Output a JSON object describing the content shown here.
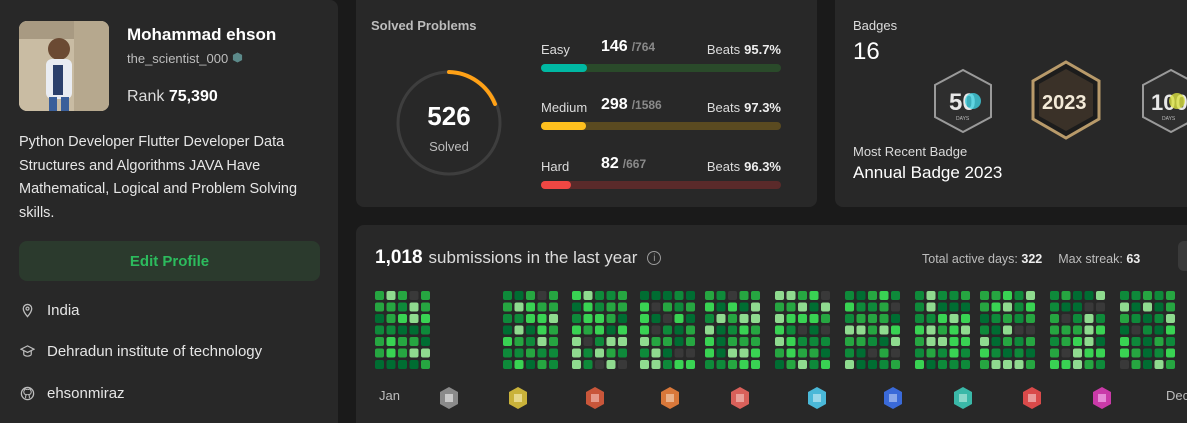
{
  "profile": {
    "name": "Mohammad ehson",
    "username": "the_scientist_000",
    "rank_label": "Rank",
    "rank_value": "75,390",
    "bio": "Python Developer Flutter Developer Data Structures and Algorithms JAVA Have Mathematical, Logical and Problem Solving skills.",
    "edit_button": "Edit Profile",
    "location": "India",
    "school": "Dehradun institute of technology",
    "github": "ehsonmiraz"
  },
  "solved": {
    "title": "Solved Problems",
    "total": "526",
    "total_label": "Solved",
    "difficulties": [
      {
        "name": "Easy",
        "count": "146",
        "total": "/764",
        "beats_label": "Beats",
        "beats": "95.7%",
        "fraction": 0.191,
        "color": "#00b8a3",
        "track": "#2a4a2a"
      },
      {
        "name": "Medium",
        "count": "298",
        "total": "/1586",
        "beats_label": "Beats",
        "beats": "97.3%",
        "fraction": 0.188,
        "color": "#ffc01e",
        "track": "#5a4a20"
      },
      {
        "name": "Hard",
        "count": "82",
        "total": "/667",
        "beats_label": "Beats",
        "beats": "96.3%",
        "fraction": 0.123,
        "color": "#ef4743",
        "track": "#5a2a2a"
      }
    ]
  },
  "badges": {
    "title": "Badges",
    "count": "16",
    "recent_label": "Most Recent Badge",
    "recent_name": "Annual Badge 2023",
    "badge_texts": [
      "50",
      "DAYS",
      "2023",
      "100",
      "DAYS"
    ]
  },
  "submissions": {
    "count": "1,018",
    "label": "submissions in the last year",
    "active_days_label": "Total active days:",
    "active_days": "322",
    "max_streak_label": "Max streak:",
    "max_streak": "63",
    "month_start": "Jan",
    "month_end": "Dec"
  },
  "colors": {
    "accent_green": "#2cbb5d",
    "ring_orange": "#ffa116"
  }
}
